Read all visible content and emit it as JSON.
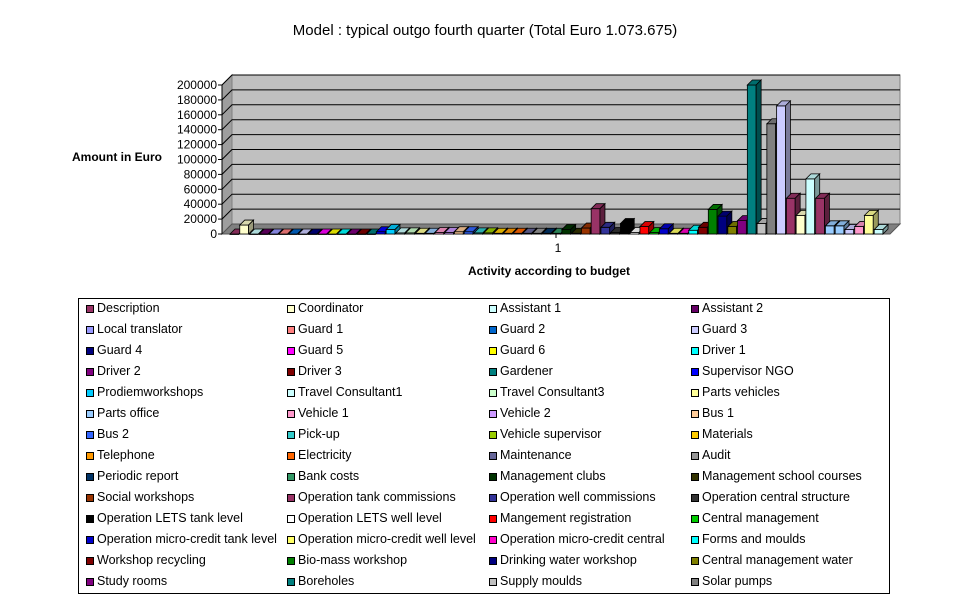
{
  "chart_data": {
    "type": "bar",
    "title": "Model : typical outgo fourth quarter (Total Euro 1.073.675)",
    "ylabel": "Amount in Euro",
    "xlabel": "Activity according to budget",
    "categories": [
      "1"
    ],
    "ylim": [
      0,
      200000
    ],
    "yticks": [
      0,
      20000,
      40000,
      60000,
      80000,
      100000,
      120000,
      140000,
      160000,
      180000,
      200000
    ],
    "grid": true,
    "legend_position": "bottom",
    "series": [
      {
        "name": "Description",
        "value": 0,
        "color": "#993366"
      },
      {
        "name": "Coordinator",
        "value": 12000,
        "color": "#FFFFCC"
      },
      {
        "name": "Assistant 1",
        "value": 0,
        "color": "#CCFFFF"
      },
      {
        "name": "Assistant 2",
        "value": 0,
        "color": "#660066"
      },
      {
        "name": "Local translator",
        "value": 0,
        "color": "#9999FF"
      },
      {
        "name": "Guard 1",
        "value": 0,
        "color": "#FF8080"
      },
      {
        "name": "Guard 2",
        "value": 0,
        "color": "#0066CC"
      },
      {
        "name": "Guard 3",
        "value": 0,
        "color": "#CCCCFF"
      },
      {
        "name": "Guard 4",
        "value": 0,
        "color": "#000080"
      },
      {
        "name": "Guard 5",
        "value": 0,
        "color": "#FF00FF"
      },
      {
        "name": "Guard 6",
        "value": 0,
        "color": "#FFFF00"
      },
      {
        "name": "Driver 1",
        "value": 0,
        "color": "#00FFFF"
      },
      {
        "name": "Driver 2",
        "value": 0,
        "color": "#800080"
      },
      {
        "name": "Driver 3",
        "value": 0,
        "color": "#800000"
      },
      {
        "name": "Gardener",
        "value": 0,
        "color": "#008080"
      },
      {
        "name": "Supervisor NGO",
        "value": 3000,
        "color": "#0000FF"
      },
      {
        "name": "Prodiemworkshops",
        "value": 6000,
        "color": "#00CCFF"
      },
      {
        "name": "Travel Consultant1",
        "value": 1500,
        "color": "#CCFFFF"
      },
      {
        "name": "  Travel Consultant3",
        "value": 1500,
        "color": "#CCFFCC"
      },
      {
        "name": "Parts vehicles",
        "value": 1000,
        "color": "#FFFF99"
      },
      {
        "name": "Parts office",
        "value": 1000,
        "color": "#99CCFF"
      },
      {
        "name": "Vehicle 1",
        "value": 2000,
        "color": "#FF99CC"
      },
      {
        "name": "Vehicle 2",
        "value": 2000,
        "color": "#CC99FF"
      },
      {
        "name": "Bus 1",
        "value": 3000,
        "color": "#FFCC99"
      },
      {
        "name": "Bus 2",
        "value": 3000,
        "color": "#3366FF"
      },
      {
        "name": "Pick-up",
        "value": 1500,
        "color": "#33CCCC"
      },
      {
        "name": "Vehicle supervisor",
        "value": 1500,
        "color": "#99CC00"
      },
      {
        "name": "Materials",
        "value": 1000,
        "color": "#FFCC00"
      },
      {
        "name": "Telephone",
        "value": 1000,
        "color": "#FF9900"
      },
      {
        "name": "Electricity",
        "value": 1000,
        "color": "#FF6600"
      },
      {
        "name": "Maintenance",
        "value": 1000,
        "color": "#666699"
      },
      {
        "name": "Audit",
        "value": 1000,
        "color": "#969696"
      },
      {
        "name": "Periodic report",
        "value": 1000,
        "color": "#003366"
      },
      {
        "name": "Bank costs",
        "value": 1000,
        "color": "#339966"
      },
      {
        "name": "Management clubs",
        "value": 6000,
        "color": "#003300"
      },
      {
        "name": "Management school courses",
        "value": 1000,
        "color": "#333300"
      },
      {
        "name": "Social workshops",
        "value": 8000,
        "color": "#993300"
      },
      {
        "name": "Operation tank commissions",
        "value": 34000,
        "color": "#993366"
      },
      {
        "name": "Operation well commissions",
        "value": 9000,
        "color": "#333399"
      },
      {
        "name": "Operation central structure",
        "value": 2000,
        "color": "#333333"
      },
      {
        "name": "Operation LETS tank level",
        "value": 14000,
        "color": "#000000"
      },
      {
        "name": "Operation LETS well level",
        "value": 2000,
        "color": "#FFFFFF"
      },
      {
        "name": "Mangement registration",
        "value": 10000,
        "color": "#FF0000"
      },
      {
        "name": "Central management",
        "value": 2000,
        "color": "#00CC00"
      },
      {
        "name": "Operation micro-credit tank level",
        "value": 7000,
        "color": "#0000CC"
      },
      {
        "name": "Operation micro-credit well level",
        "value": 1000,
        "color": "#FFFF66"
      },
      {
        "name": "Operation micro-credit central",
        "value": 1000,
        "color": "#FF00CC"
      },
      {
        "name": "Forms and moulds",
        "value": 5000,
        "color": "#00FFFF"
      },
      {
        "name": "Workshop recycling",
        "value": 9000,
        "color": "#800000"
      },
      {
        "name": "Bio-mass workshop",
        "value": 33000,
        "color": "#008000"
      },
      {
        "name": "Drinking water workshop",
        "value": 24000,
        "color": "#000080"
      },
      {
        "name": "Central management water",
        "value": 10000,
        "color": "#808000"
      },
      {
        "name": "Study rooms",
        "value": 18000,
        "color": "#800080"
      },
      {
        "name": "Boreholes",
        "value": 200000,
        "color": "#008080"
      },
      {
        "name": "Supply moulds",
        "value": 14000,
        "color": "#C0C0C0"
      },
      {
        "name": "Solar pumps",
        "value": 148000,
        "color": "#808080"
      },
      {
        "name": "",
        "value": 172000,
        "color": "#CCCCFF"
      },
      {
        "name": "",
        "value": 48000,
        "color": "#993366"
      },
      {
        "name": "",
        "value": 25000,
        "color": "#FFFFCC"
      },
      {
        "name": "",
        "value": 74000,
        "color": "#CCFFFF"
      },
      {
        "name": "",
        "value": 48000,
        "color": "#993366"
      },
      {
        "name": "",
        "value": 11000,
        "color": "#99CCFF"
      },
      {
        "name": "",
        "value": 11000,
        "color": "#99CCFF"
      },
      {
        "name": "",
        "value": 6000,
        "color": "#CCCCFF"
      },
      {
        "name": "",
        "value": 10000,
        "color": "#FF99CC"
      },
      {
        "name": "",
        "value": 25000,
        "color": "#FFFF99"
      },
      {
        "name": "",
        "value": 6000,
        "color": "#CCFFFF"
      }
    ]
  }
}
